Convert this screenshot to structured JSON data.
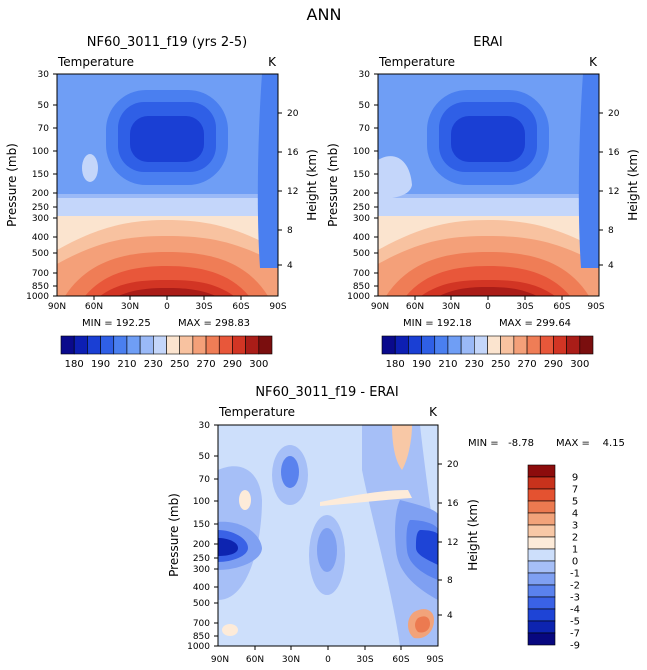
{
  "page_title": "ANN",
  "colors": {
    "temp_levels": [
      "#0a0a8c",
      "#0d1fb3",
      "#1a3fd4",
      "#2f5fe6",
      "#4a7ff0",
      "#6f9ef5",
      "#9ab9f7",
      "#c4d6fa",
      "#fbe4cf",
      "#f8c2a0",
      "#f4a079",
      "#ef7d56",
      "#e8573a",
      "#d23524",
      "#aa1d18",
      "#7a0e0e"
    ],
    "diff_levels": [
      "#08087f",
      "#0d24b0",
      "#1e44d6",
      "#3a62e6",
      "#5a82ee",
      "#7fa0f2",
      "#a6bff7",
      "#cddffb",
      "#fdebd9",
      "#f8c8a6",
      "#f2a37a",
      "#ec7a50",
      "#e45230",
      "#c8321c",
      "#8c0c0c"
    ]
  },
  "chart_data": [
    {
      "type": "heatmap",
      "title": "NF60_3011_f19 (yrs 2-5)",
      "subtitle": "Temperature",
      "units": "K",
      "xlabel": "",
      "ylabel": "Pressure (mb)",
      "ylabel_right": "Height (km)",
      "x_ticks": [
        "90N",
        "60N",
        "30N",
        "0",
        "30S",
        "60S",
        "90S"
      ],
      "y_ticks": [
        "30",
        "50",
        "70",
        "100",
        "150",
        "200",
        "250",
        "300",
        "400",
        "500",
        "700",
        "850",
        "1000"
      ],
      "y_ticks_right": [
        "20",
        "16",
        "12",
        "8",
        "4"
      ],
      "min_label": "MIN = 192.25",
      "max_label": "MAX = 298.83",
      "colorbar_labels": [
        "180",
        "190",
        "210",
        "230",
        "250",
        "270",
        "290",
        "300"
      ],
      "zlim": [
        180,
        300
      ]
    },
    {
      "type": "heatmap",
      "title": "ERAI",
      "subtitle": "Temperature",
      "units": "K",
      "xlabel": "",
      "ylabel": "Pressure (mb)",
      "ylabel_right": "Height (km)",
      "x_ticks": [
        "90N",
        "60N",
        "30N",
        "0",
        "30S",
        "60S",
        "90S"
      ],
      "y_ticks": [
        "30",
        "50",
        "70",
        "100",
        "150",
        "200",
        "250",
        "300",
        "400",
        "500",
        "700",
        "850",
        "1000"
      ],
      "y_ticks_right": [
        "20",
        "16",
        "12",
        "8",
        "4"
      ],
      "min_label": "MIN = 192.18",
      "max_label": "MAX = 299.64",
      "zlim": [
        180,
        300
      ]
    },
    {
      "type": "heatmap",
      "title": "NF60_3011_f19 - ERAI",
      "subtitle": "Temperature",
      "units": "K",
      "xlabel": "",
      "ylabel": "Pressure (mb)",
      "ylabel_right": "Height (km)",
      "x_ticks": [
        "90N",
        "60N",
        "30N",
        "0",
        "30S",
        "60S",
        "90S"
      ],
      "y_ticks": [
        "30",
        "50",
        "70",
        "100",
        "150",
        "200",
        "250",
        "300",
        "400",
        "500",
        "700",
        "850",
        "1000"
      ],
      "y_ticks_right": [
        "20",
        "16",
        "12",
        "8",
        "4"
      ],
      "min_label": "MIN =   -8.78",
      "max_label": "MAX =    4.15",
      "colorbar_labels": [
        "9",
        "7",
        "5",
        "4",
        "3",
        "2",
        "1",
        "0",
        "-1",
        "-2",
        "-3",
        "-4",
        "-5",
        "-7",
        "-9"
      ],
      "zlim": [
        -9,
        9
      ]
    }
  ]
}
